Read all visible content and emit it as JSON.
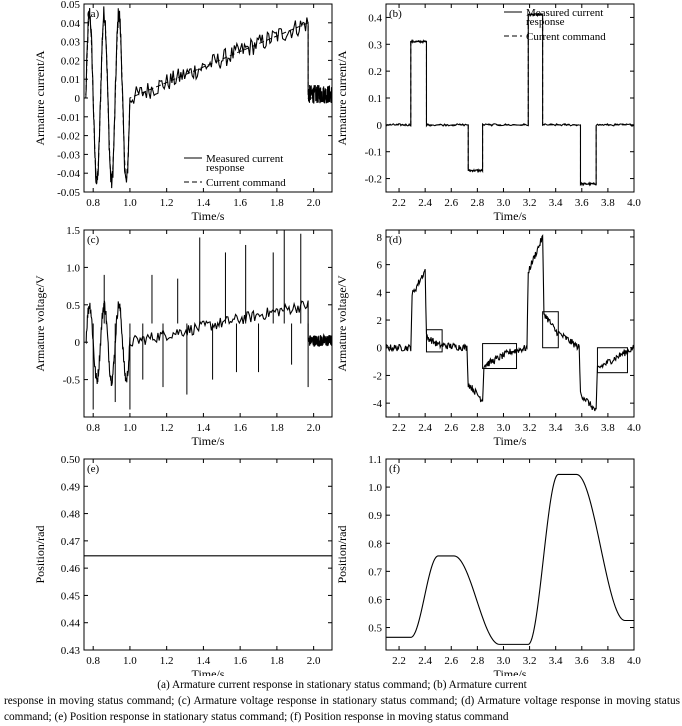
{
  "caption": {
    "line1": "(a) Armature current response in stationary status command; (b) Armature current",
    "rest": "response in moving status command; (c) Armature voltage response in stationary status command; (d) Armature voltage response in moving status command; (e) Position response in stationary status command; (f) Position response in moving status command"
  },
  "chart_data": [
    {
      "id": "a",
      "tag": "(a)",
      "type": "line",
      "xlabel": "Time/s",
      "ylabel": "Armature current/A",
      "xlim": [
        0.75,
        2.1
      ],
      "ylim": [
        -0.05,
        0.05
      ],
      "xticks": [
        "0.8",
        "1.0",
        "1.2",
        "1.4",
        "1.6",
        "1.8",
        "2.0"
      ],
      "yticks": [
        "-0.05",
        "-0.04",
        "-0.03",
        "-0.02",
        "-0.01",
        "0",
        "0.01",
        "0.02",
        "0.03",
        "0.04",
        "0.05"
      ],
      "legend": {
        "position": "bottom-right",
        "entries": [
          "Measured current response",
          "Current command"
        ]
      },
      "series": [
        {
          "name": "Measured current response",
          "style": "solid",
          "noise": 0.005,
          "segments": [
            {
              "kind": "sine",
              "x0": 0.76,
              "x1": 1.0,
              "amp": 0.045,
              "freq": 12.5,
              "offset": 0
            },
            {
              "kind": "linear",
              "x0": 1.0,
              "x1": 1.97,
              "y0": 0.0,
              "y1": 0.04
            },
            {
              "kind": "linear",
              "x0": 1.97,
              "x1": 2.1,
              "y0": 0.002,
              "y1": 0.002
            }
          ]
        },
        {
          "name": "Current command",
          "style": "dashed",
          "noise": 0,
          "segments": [
            {
              "kind": "sine",
              "x0": 0.76,
              "x1": 1.0,
              "amp": 0.043,
              "freq": 12.5,
              "offset": 0
            },
            {
              "kind": "linear",
              "x0": 1.0,
              "x1": 1.97,
              "y0": 0.0,
              "y1": 0.04
            },
            {
              "kind": "linear",
              "x0": 1.97,
              "x1": 2.1,
              "y0": 0.0,
              "y1": 0.0
            }
          ]
        }
      ]
    },
    {
      "id": "b",
      "tag": "(b)",
      "type": "line",
      "xlabel": "Time/s",
      "ylabel": "Armature current/A",
      "xlim": [
        2.1,
        4.0
      ],
      "ylim": [
        -0.25,
        0.45
      ],
      "xticks": [
        "2.2",
        "2.4",
        "2.6",
        "2.8",
        "3.0",
        "3.2",
        "3.4",
        "3.6",
        "3.8",
        "4.0"
      ],
      "yticks": [
        "-0.2",
        "-0.1",
        "0",
        "0.1",
        "0.2",
        "0.3",
        "0.4"
      ],
      "legend": {
        "position": "top-right",
        "entries": [
          "Measured current response",
          "Current command"
        ]
      },
      "series": [
        {
          "name": "Measured current response",
          "style": "solid",
          "noise": 0.004,
          "steps": [
            [
              2.1,
              0
            ],
            [
              2.29,
              0.31
            ],
            [
              2.41,
              0
            ],
            [
              2.73,
              -0.17
            ],
            [
              2.84,
              0
            ],
            [
              3.19,
              0.41
            ],
            [
              3.3,
              0
            ],
            [
              3.59,
              -0.22
            ],
            [
              3.71,
              0
            ],
            [
              4.0,
              0
            ]
          ]
        },
        {
          "name": "Current command",
          "style": "dashed",
          "noise": 0,
          "steps": [
            [
              2.1,
              0
            ],
            [
              2.29,
              0.31
            ],
            [
              2.41,
              0
            ],
            [
              2.73,
              -0.17
            ],
            [
              2.84,
              0
            ],
            [
              3.19,
              0.41
            ],
            [
              3.3,
              0
            ],
            [
              3.59,
              -0.22
            ],
            [
              3.71,
              0
            ],
            [
              4.0,
              0
            ]
          ]
        }
      ]
    },
    {
      "id": "c",
      "tag": "(c)",
      "type": "line",
      "xlabel": "Time/s",
      "ylabel": "Armature voltage/V",
      "xlim": [
        0.75,
        2.1
      ],
      "ylim": [
        -1.0,
        1.5
      ],
      "xticks": [
        "0.8",
        "1.0",
        "1.2",
        "1.4",
        "1.6",
        "1.8",
        "2.0"
      ],
      "yticks": [
        "-0.5",
        "0",
        "0.5",
        "1.0",
        "1.5"
      ],
      "series": [
        {
          "name": "",
          "style": "solid",
          "noise": 0.08,
          "segments": [
            {
              "kind": "sine",
              "x0": 0.76,
              "x1": 1.0,
              "amp": 0.5,
              "freq": 12.5,
              "offset": 0
            },
            {
              "kind": "linear",
              "x0": 1.0,
              "x1": 1.97,
              "y0": 0.0,
              "y1": 0.5
            },
            {
              "kind": "linear",
              "x0": 1.97,
              "x1": 2.1,
              "y0": 0.02,
              "y1": 0.02
            }
          ],
          "spikes": [
            [
              0.8,
              -0.9
            ],
            [
              0.86,
              0.9
            ],
            [
              0.92,
              -0.8
            ],
            [
              1.0,
              -0.9
            ],
            [
              1.07,
              -0.5
            ],
            [
              1.12,
              0.9
            ],
            [
              1.18,
              -0.6
            ],
            [
              1.26,
              0.85
            ],
            [
              1.31,
              -0.7
            ],
            [
              1.38,
              1.4
            ],
            [
              1.45,
              -0.5
            ],
            [
              1.52,
              1.2
            ],
            [
              1.58,
              -0.4
            ],
            [
              1.63,
              1.3
            ],
            [
              1.7,
              -0.4
            ],
            [
              1.78,
              1.2
            ],
            [
              1.84,
              1.5
            ],
            [
              1.88,
              -0.3
            ],
            [
              1.93,
              1.45
            ],
            [
              1.97,
              -0.6
            ]
          ]
        }
      ]
    },
    {
      "id": "d",
      "tag": "(d)",
      "type": "line",
      "xlabel": "Time/s",
      "ylabel": "Armature voltage/V",
      "xlim": [
        2.1,
        4.0
      ],
      "ylim": [
        -5,
        8.5
      ],
      "xticks": [
        "2.2",
        "2.4",
        "2.6",
        "2.8",
        "3.0",
        "3.2",
        "3.4",
        "3.6",
        "3.8",
        "4.0"
      ],
      "yticks": [
        "-4",
        "-2",
        "0",
        "2",
        "4",
        "6",
        "8"
      ],
      "series": [
        {
          "name": "",
          "style": "solid",
          "noise": 0.25,
          "points": [
            [
              2.1,
              0
            ],
            [
              2.29,
              0
            ],
            [
              2.3,
              3.8
            ],
            [
              2.4,
              5.6
            ],
            [
              2.41,
              0.8
            ],
            [
              2.5,
              0.2
            ],
            [
              2.72,
              0
            ],
            [
              2.73,
              -2.6
            ],
            [
              2.84,
              -3.8
            ],
            [
              2.85,
              -1.3
            ],
            [
              3.05,
              -0.3
            ],
            [
              3.18,
              0
            ],
            [
              3.19,
              5.5
            ],
            [
              3.3,
              8.0
            ],
            [
              3.31,
              2.5
            ],
            [
              3.4,
              1.2
            ],
            [
              3.58,
              0
            ],
            [
              3.59,
              -3.3
            ],
            [
              3.71,
              -4.6
            ],
            [
              3.72,
              -1.5
            ],
            [
              3.9,
              -0.5
            ],
            [
              4.0,
              0
            ]
          ]
        }
      ],
      "highlight_boxes": [
        [
          2.41,
          2.53,
          -0.3,
          1.3
        ],
        [
          2.84,
          3.1,
          -1.5,
          0.3
        ],
        [
          3.3,
          3.42,
          0,
          2.6
        ],
        [
          3.72,
          3.95,
          -1.8,
          0
        ]
      ]
    },
    {
      "id": "e",
      "tag": "(e)",
      "type": "line",
      "xlabel": "Time/s",
      "ylabel": "Position/rad",
      "xlim": [
        0.75,
        2.1
      ],
      "ylim": [
        0.43,
        0.5
      ],
      "xticks": [
        "0.8",
        "1.0",
        "1.2",
        "1.4",
        "1.6",
        "1.8",
        "2.0"
      ],
      "yticks": [
        "0.43",
        "0.44",
        "0.45",
        "0.46",
        "0.47",
        "0.48",
        "0.49",
        "0.50"
      ],
      "series": [
        {
          "name": "",
          "style": "solid",
          "noise": 0,
          "points": [
            [
              0.75,
              0.4645
            ],
            [
              2.1,
              0.4645
            ]
          ]
        }
      ]
    },
    {
      "id": "f",
      "tag": "(f)",
      "type": "line",
      "xlabel": "Time/s",
      "ylabel": "Position/rad",
      "xlim": [
        2.1,
        4.0
      ],
      "ylim": [
        0.42,
        1.1
      ],
      "xticks": [
        "2.2",
        "2.4",
        "2.6",
        "2.8",
        "3.0",
        "3.2",
        "3.4",
        "3.6",
        "3.8",
        "4.0"
      ],
      "yticks": [
        "0.5",
        "0.6",
        "0.7",
        "0.8",
        "0.9",
        "1.0",
        "1.1"
      ],
      "series": [
        {
          "name": "",
          "style": "solid",
          "noise": 0,
          "trapezoid": [
            [
              2.1,
              2.29,
              0.465
            ],
            [
              2.29,
              2.5,
              0.465,
              0.755
            ],
            [
              2.5,
              2.62,
              0.755
            ],
            [
              2.62,
              2.97,
              0.755,
              0.44
            ],
            [
              2.97,
              3.19,
              0.44
            ],
            [
              3.19,
              3.42,
              0.44,
              1.045
            ],
            [
              3.42,
              3.56,
              1.045
            ],
            [
              3.56,
              3.93,
              1.045,
              0.525
            ],
            [
              3.93,
              4.0,
              0.525
            ]
          ]
        }
      ]
    }
  ]
}
